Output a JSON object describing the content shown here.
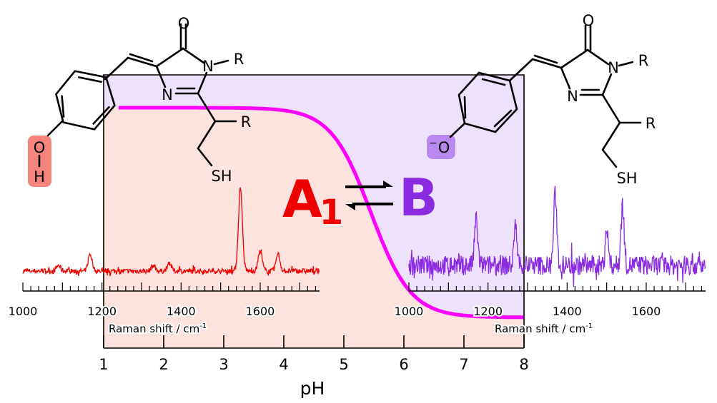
{
  "colors": {
    "state_a": "#ee0000",
    "state_b": "#8a2be2",
    "curve": "#ff00ff",
    "region_a": "#fde2de",
    "region_b": "#ede1fb",
    "oh_highlight": "#f4847c",
    "o_minus_highlight": "#b88af0"
  },
  "states": {
    "a_letter": "A",
    "a_subscript": "1",
    "b_letter": "B",
    "equilibrium_icon": "double-arrow-equilibrium-icon"
  },
  "molecule_a": {
    "carbonyl_o": "O",
    "ring_n1": "N",
    "n_substituent": "R",
    "ring_n3": "N",
    "side_r": "R",
    "thiol": "SH",
    "phenol_o": "O",
    "phenol_h": "H"
  },
  "molecule_b": {
    "carbonyl_o": "O",
    "ring_n1": "N",
    "n_substituent": "R",
    "ring_n3": "N",
    "side_r": "R",
    "thiol": "SH",
    "phenolate_charge": "−",
    "phenolate_o": "O"
  },
  "chart_data": [
    {
      "type": "line",
      "xlabel": "pH",
      "xlim": [
        1,
        8
      ],
      "xticks": [
        "1",
        "2",
        "3",
        "4",
        "5",
        "6",
        "7",
        "8"
      ],
      "series": [
        {
          "pKa": 5.45,
          "hill": 1.3,
          "from_ph": 1.25,
          "to_ph": 8
        }
      ]
    },
    {
      "type": "line",
      "xlabel": "Raman shift / cm",
      "xlabel_sup": "-1",
      "xlim": [
        1000,
        1750
      ],
      "xticks": [
        "1000",
        "1200",
        "1400",
        "1600"
      ],
      "color": "#ee0000",
      "peaks": [
        [
          1090,
          8
        ],
        [
          1170,
          24
        ],
        [
          1330,
          8
        ],
        [
          1370,
          12
        ],
        [
          1550,
          115
        ],
        [
          1600,
          28
        ],
        [
          1645,
          24
        ]
      ]
    },
    {
      "type": "line",
      "xlabel": "Raman shift / cm",
      "xlabel_sup": "-1",
      "xlim": [
        1000,
        1750
      ],
      "xticks": [
        "1000",
        "1200",
        "1400",
        "1600"
      ],
      "color": "#8a2be2",
      "peaks": [
        [
          1170,
          65
        ],
        [
          1270,
          55
        ],
        [
          1370,
          100
        ],
        [
          1500,
          50
        ],
        [
          1540,
          85
        ]
      ]
    }
  ]
}
